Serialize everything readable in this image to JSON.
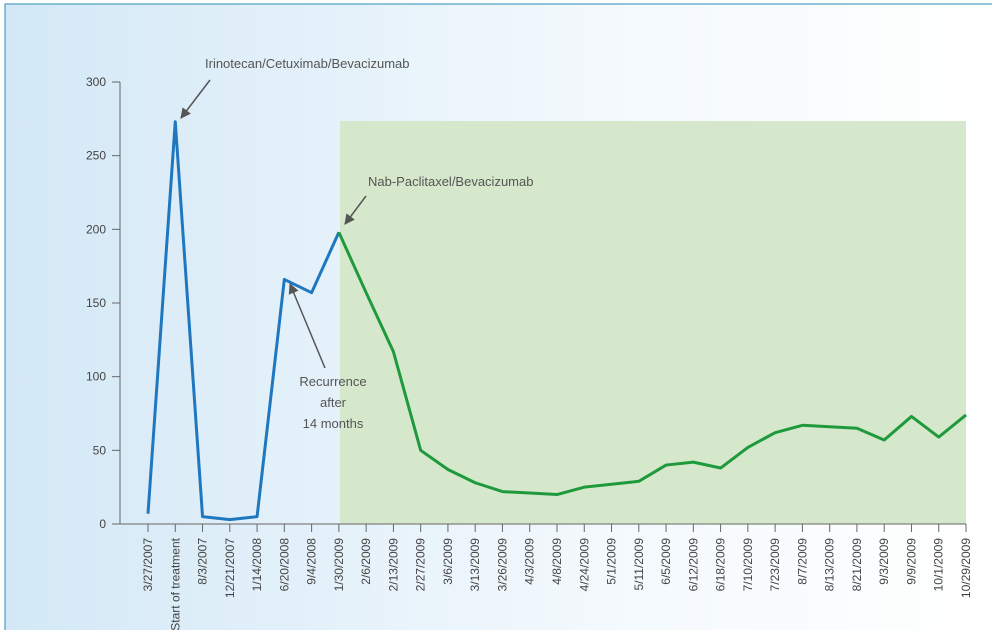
{
  "chart_data": {
    "type": "line",
    "categories": [
      "3/27/2007",
      "Start of treatment",
      "8/3/2007",
      "12/21/2007",
      "1/14/2008",
      "6/20/2008",
      "9/4/2008",
      "1/30/2009",
      "2/6/2009",
      "2/13/2009",
      "2/27/2009",
      "3/6/2009",
      "3/13/2009",
      "3/26/2009",
      "4/3/2009",
      "4/8/2009",
      "4/24/2009",
      "5/1/2009",
      "5/11/2009",
      "6/5/2009",
      "6/12/2009",
      "6/18/2009",
      "7/10/2009",
      "7/23/2009",
      "8/7/2009",
      "8/13/2009",
      "8/21/2009",
      "9/3/2009",
      "9/9/2009",
      "10/1/2009",
      "10/29/2009"
    ],
    "series": [
      {
        "color": "#1f77c0",
        "values": [
          7,
          273,
          5,
          3,
          5,
          166,
          157,
          198,
          null,
          null,
          null,
          null,
          null,
          null,
          null,
          null,
          null,
          null,
          null,
          null,
          null,
          null,
          null,
          null,
          null,
          null,
          null,
          null,
          null,
          null,
          null
        ]
      },
      {
        "color": "#1e9a3c",
        "values": [
          null,
          null,
          null,
          null,
          null,
          null,
          null,
          198,
          157,
          117,
          50,
          37,
          28,
          22,
          21,
          20,
          25,
          27,
          29,
          40,
          42,
          38,
          52,
          62,
          67,
          66,
          65,
          57,
          73,
          59,
          74
        ]
      }
    ],
    "ylim": [
      0,
      300
    ],
    "yticks": [
      0,
      50,
      100,
      150,
      200,
      250,
      300
    ],
    "grid": false,
    "annotations": [
      {
        "text": "Irinotecan/Cetuximab/Bevacizumab"
      },
      {
        "text": "Nab-Paclitaxel/Bevacizumab"
      },
      {
        "lines": [
          "Recurrence",
          "after",
          "14 months"
        ]
      }
    ]
  }
}
